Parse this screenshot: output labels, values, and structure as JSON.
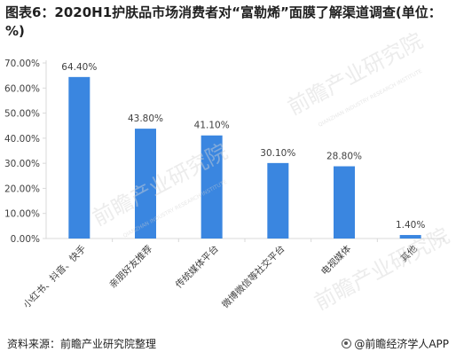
{
  "title": "图表6：2020H1护肤品市场消费者对“富勒烯”面膜了解渠道调查(单位：%)",
  "footer": {
    "source": "资料来源：前瞻产业研究院整理",
    "brand": "@前瞻经济学人APP"
  },
  "watermark": {
    "text": "前瞻产业研究院",
    "sub": "QIANZHAN INDUSTRY RESEARCH INSTITUTE"
  },
  "colors": {
    "bar": "#3a86e0",
    "axis": "#d9d9d9",
    "text": "#404040"
  },
  "chart_data": {
    "type": "bar",
    "categories": [
      "小红书、抖音、快手",
      "亲朋好友推荐",
      "传统媒体平台",
      "微博微信等社交平台",
      "电视媒体",
      "其他"
    ],
    "values": [
      64.4,
      43.8,
      41.1,
      30.1,
      28.8,
      1.4
    ],
    "data_labels": [
      "64.40%",
      "43.80%",
      "41.10%",
      "30.10%",
      "28.80%",
      "1.40%"
    ],
    "yticks": [
      "0.00%",
      "10.00%",
      "20.00%",
      "30.00%",
      "40.00%",
      "50.00%",
      "60.00%",
      "70.00%"
    ],
    "ylim": [
      0,
      70
    ],
    "grid": false,
    "xlabel": "",
    "ylabel": ""
  }
}
